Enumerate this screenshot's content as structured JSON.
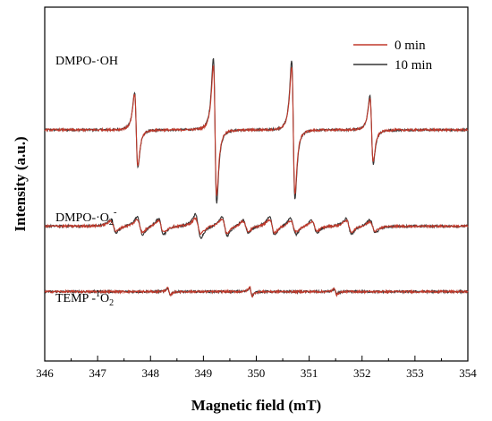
{
  "chart_data": {
    "type": "line",
    "title": "",
    "xlabel": "Magnetic field (mT)",
    "ylabel": "Intensity (a.u.)",
    "xlim": [
      346,
      354
    ],
    "x_ticks": [
      346,
      347,
      348,
      349,
      350,
      351,
      352,
      353,
      354
    ],
    "y_ticks_shown": false,
    "grid": false,
    "legend_position": "top-right",
    "series": [
      {
        "name": "0 min",
        "color": "#c0392b"
      },
      {
        "name": "10 min",
        "color": "#333333"
      }
    ],
    "panels": [
      {
        "label_main": "DMPO-·OH",
        "label_sup": "",
        "label_sub": "",
        "label_tail": "",
        "baseline_au": 0.0,
        "peaks": [
          {
            "field": 347.73,
            "amp_0min": 0.55,
            "amp_10min": 0.58
          },
          {
            "field": 349.22,
            "amp_0min": 1.0,
            "amp_10min": 1.12
          },
          {
            "field": 350.7,
            "amp_0min": 0.98,
            "amp_10min": 1.08
          },
          {
            "field": 352.18,
            "amp_0min": 0.49,
            "amp_10min": 0.52
          }
        ]
      },
      {
        "label_main": "DMPO-·O",
        "label_sub": "2",
        "label_sup": "-",
        "label_tail": "",
        "baseline_au": -1.25,
        "peaks": [
          {
            "field": 347.3,
            "amp_0min": 0.08,
            "amp_10min": 0.1
          },
          {
            "field": 347.8,
            "amp_0min": 0.1,
            "amp_10min": 0.14
          },
          {
            "field": 348.2,
            "amp_0min": 0.09,
            "amp_10min": 0.12
          },
          {
            "field": 348.9,
            "amp_0min": 0.12,
            "amp_10min": 0.18
          },
          {
            "field": 349.4,
            "amp_0min": 0.11,
            "amp_10min": 0.15
          },
          {
            "field": 349.8,
            "amp_0min": 0.08,
            "amp_10min": 0.1
          },
          {
            "field": 350.3,
            "amp_0min": 0.1,
            "amp_10min": 0.14
          },
          {
            "field": 350.7,
            "amp_0min": 0.09,
            "amp_10min": 0.13
          },
          {
            "field": 351.1,
            "amp_0min": 0.07,
            "amp_10min": 0.1
          },
          {
            "field": 351.75,
            "amp_0min": 0.09,
            "amp_10min": 0.12
          },
          {
            "field": 352.2,
            "amp_0min": 0.07,
            "amp_10min": 0.1
          }
        ]
      },
      {
        "label_main": "TEMP -",
        "label_sup": "1",
        "label_sub": "2",
        "label_tail": "O",
        "baseline_au": -2.1,
        "peaks": [
          {
            "field": 348.35,
            "amp_0min": 0.06,
            "amp_10min": 0.05
          },
          {
            "field": 349.9,
            "amp_0min": 0.07,
            "amp_10min": 0.06
          },
          {
            "field": 351.5,
            "amp_0min": 0.05,
            "amp_10min": 0.04
          }
        ]
      }
    ]
  }
}
